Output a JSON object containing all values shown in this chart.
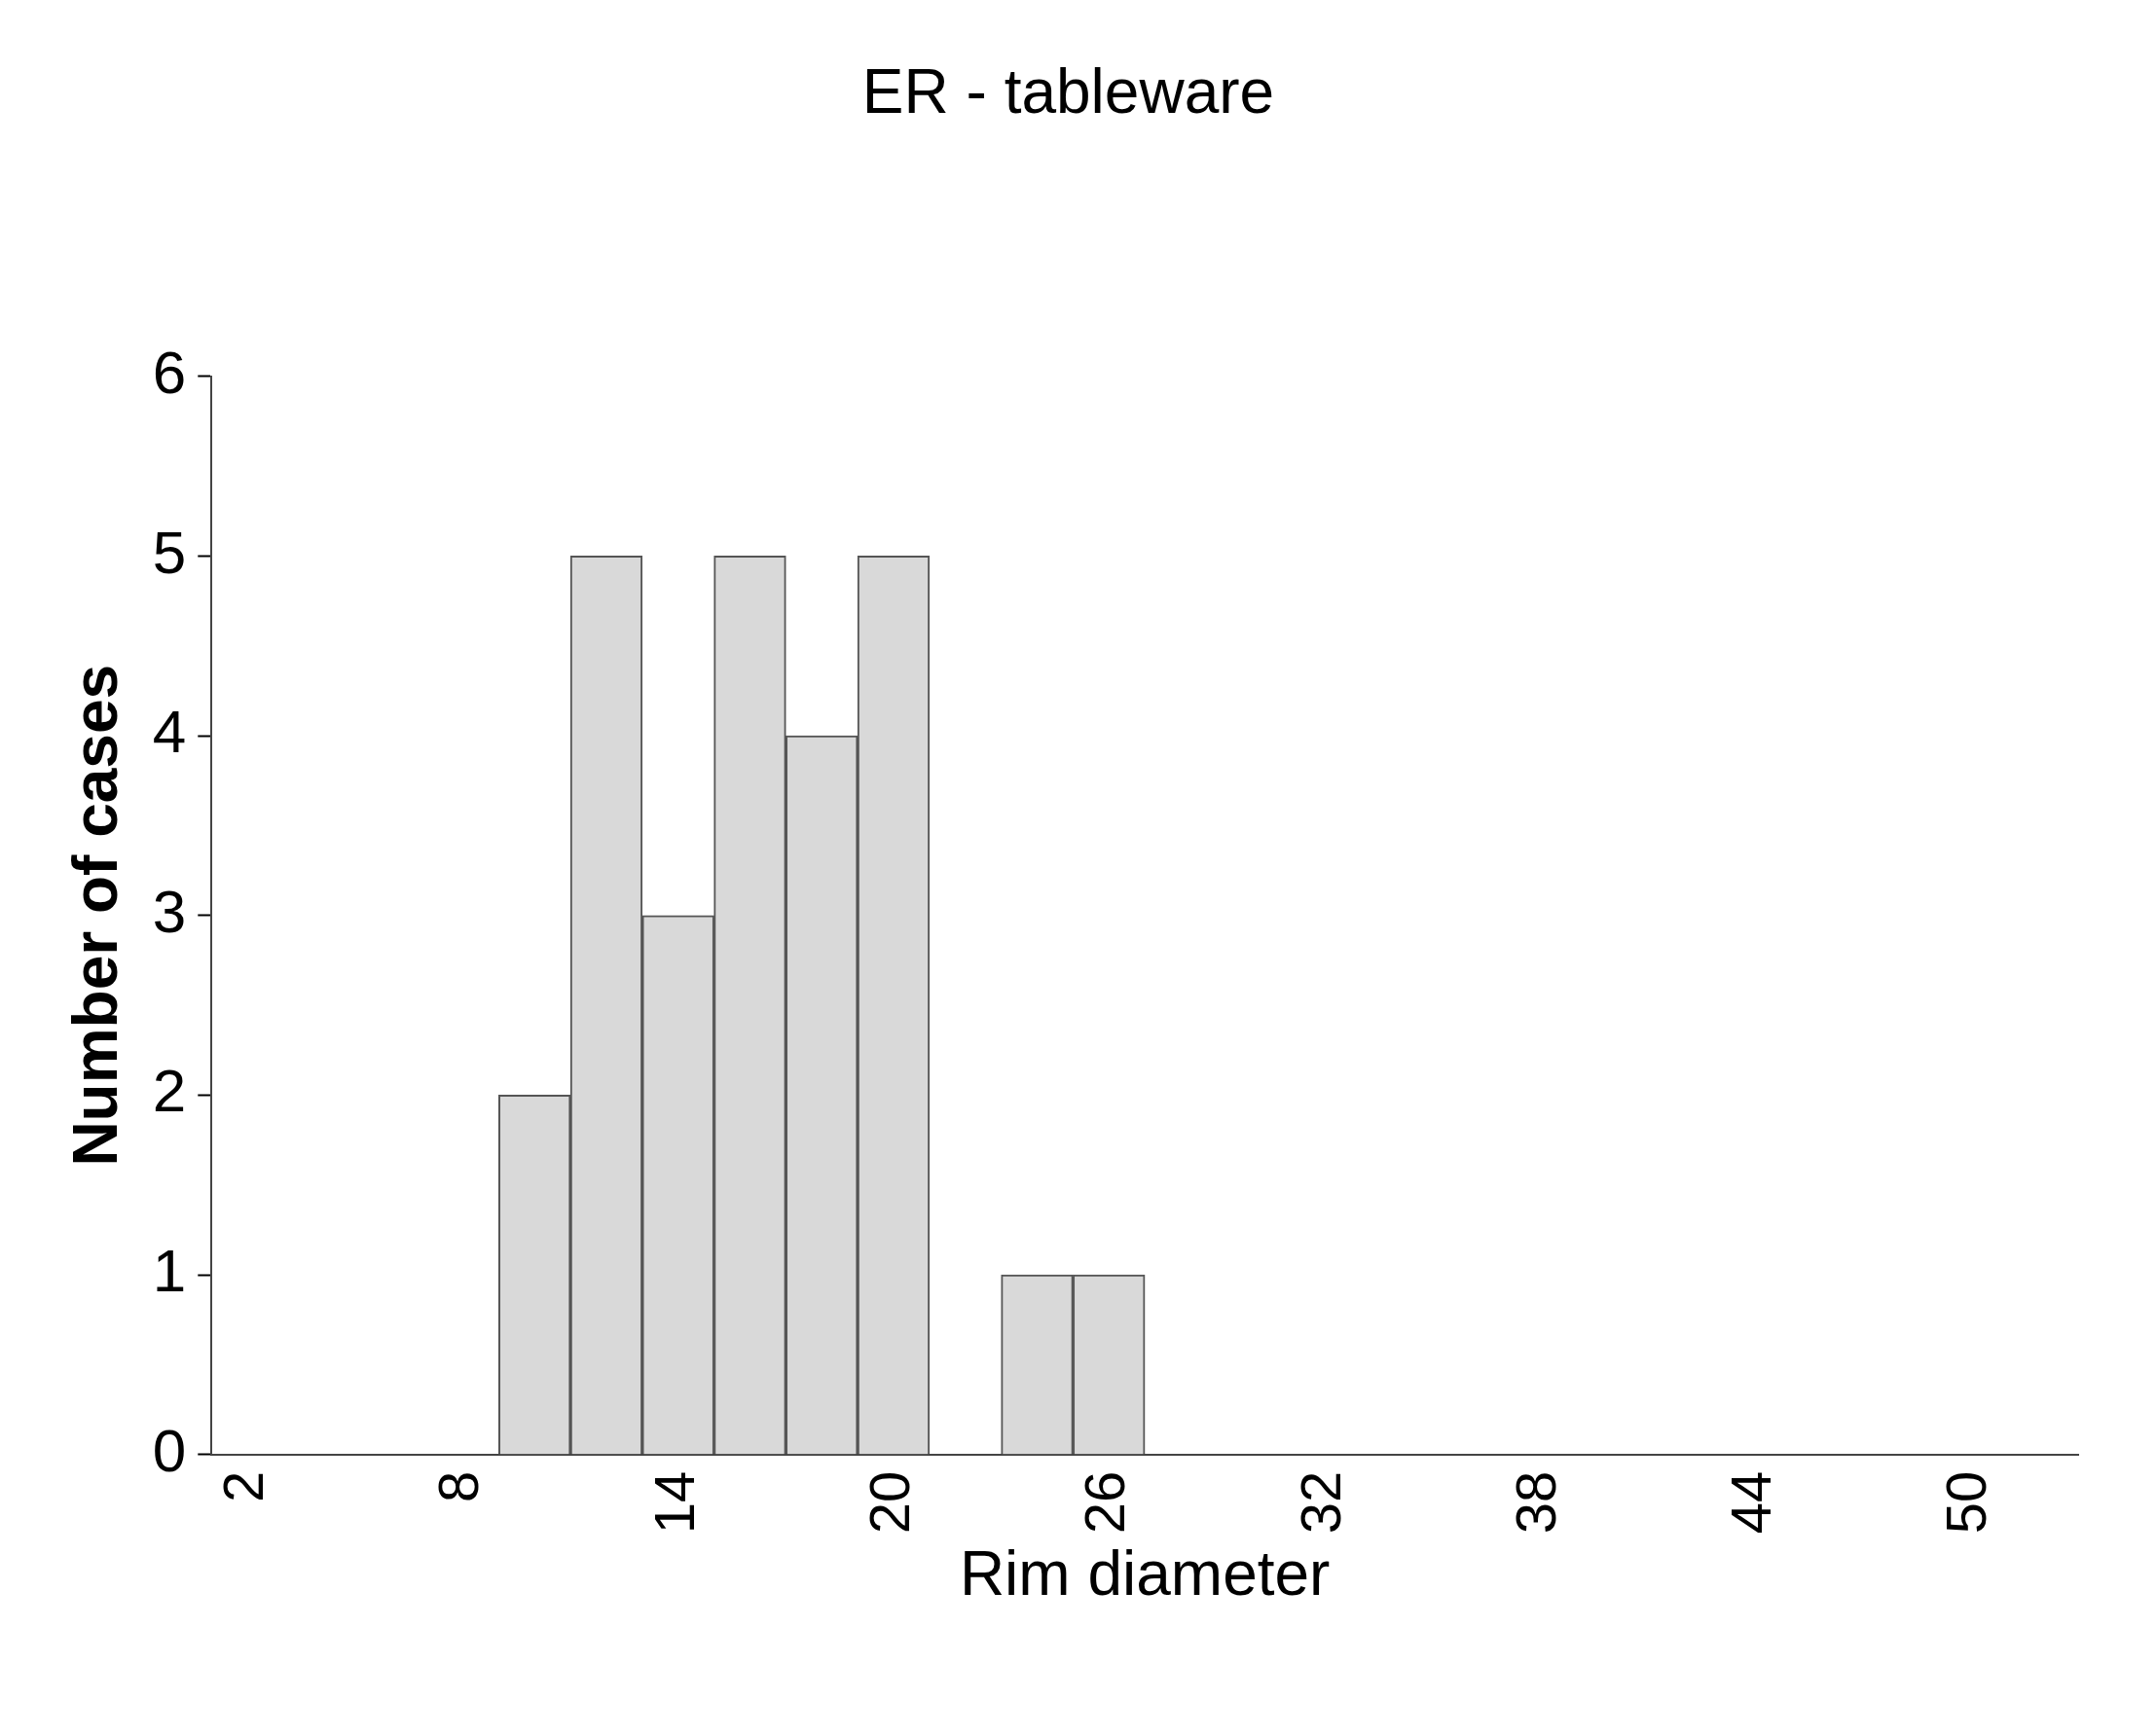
{
  "chart_data": {
    "type": "bar",
    "title": "ER - tableware",
    "xlabel": "Rim diameter",
    "ylabel": "Number of cases",
    "categories": [
      "2",
      null,
      null,
      "8",
      null,
      null,
      "14",
      null,
      null,
      "20",
      null,
      null,
      "26",
      null,
      null,
      "32",
      null,
      null,
      "38",
      null,
      null,
      "44",
      null,
      null,
      "50",
      null
    ],
    "values": [
      0,
      0,
      0,
      0,
      2,
      5,
      3,
      5,
      4,
      5,
      0,
      1,
      1,
      0,
      0,
      0,
      0,
      0,
      0,
      0,
      0,
      0,
      0,
      0,
      0,
      0
    ],
    "color": "#d9d9d9",
    "ylim": [
      0,
      6
    ],
    "yticks": [
      0,
      1,
      2,
      3,
      4,
      5,
      6
    ],
    "grid": false,
    "legend": false
  }
}
